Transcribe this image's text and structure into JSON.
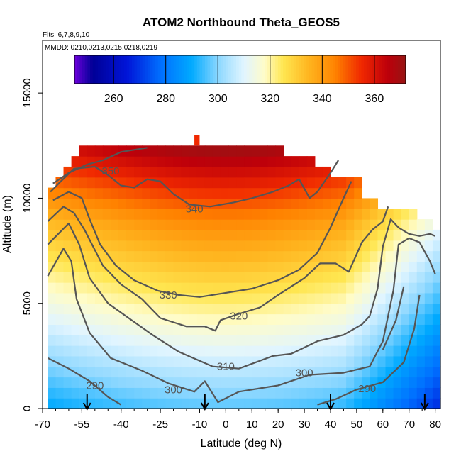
{
  "chart_data": {
    "type": "heatmap",
    "title": "ATOM2 Northbound Theta_GEOS5",
    "flights_note": "Flts: 6,7,8,9,10",
    "dates_note": "MMDD: 0210,0213,0215,0218,0219",
    "xlabel": "Latitude (deg N)",
    "ylabel": "Altitude (m)",
    "xlim": [
      -70,
      82
    ],
    "ylim": [
      0,
      17500
    ],
    "x_ticks": [
      "-70",
      "-55",
      "-40",
      "-25",
      "-10",
      "0",
      "10",
      "20",
      "30",
      "40",
      "50",
      "60",
      "70",
      "80"
    ],
    "x_tick_values": [
      -70,
      -55,
      -40,
      -25,
      -10,
      0,
      10,
      20,
      30,
      40,
      50,
      60,
      70,
      80
    ],
    "y_ticks": [
      "0",
      "5000",
      "10000",
      "15000"
    ],
    "y_tick_values": [
      0,
      5000,
      10000,
      15000
    ],
    "colorbar": {
      "range": [
        245,
        372
      ],
      "ticks": [
        "260",
        "280",
        "300",
        "320",
        "340",
        "360"
      ],
      "tick_values": [
        260,
        280,
        300,
        320,
        340,
        360
      ]
    },
    "contours": [
      {
        "level": 290,
        "label": "290",
        "points": [
          [
            -68,
            2400
          ],
          [
            -60,
            1900
          ],
          [
            -52,
            1300
          ],
          [
            -45,
            550
          ],
          [
            -40,
            180
          ]
        ],
        "label_at": [
          -50,
          1100
        ]
      },
      {
        "level": 290,
        "label": "290",
        "points": [
          [
            35,
            180
          ],
          [
            42,
            450
          ],
          [
            50,
            900
          ],
          [
            60,
            1250
          ],
          [
            68,
            2200
          ],
          [
            72,
            3800
          ],
          [
            74,
            5400
          ]
        ],
        "label_at": [
          54,
          950
        ]
      },
      {
        "level": 300,
        "label": "300",
        "points": [
          [
            -68,
            6300
          ],
          [
            -62,
            7600
          ],
          [
            -59,
            7000
          ],
          [
            -57,
            5200
          ],
          [
            -52,
            3600
          ],
          [
            -44,
            2400
          ],
          [
            -32,
            1800
          ],
          [
            -22,
            1200
          ],
          [
            -12,
            800
          ],
          [
            -8,
            1300
          ],
          [
            -3,
            300
          ],
          [
            5,
            800
          ],
          [
            20,
            1100
          ],
          [
            32,
            1600
          ],
          [
            45,
            1700
          ],
          [
            55,
            2000
          ],
          [
            60,
            3200
          ],
          [
            64,
            5600
          ],
          [
            66,
            7800
          ],
          [
            70,
            8100
          ],
          [
            74,
            7900
          ],
          [
            78,
            7000
          ],
          [
            80,
            6400
          ]
        ],
        "label_at": [
          -20,
          900
        ]
      },
      {
        "level": 300,
        "label": "300",
        "points": [
          [
            60,
            2800
          ],
          [
            65,
            4200
          ],
          [
            68,
            5800
          ]
        ],
        "label_at": [
          30,
          1700
        ]
      },
      {
        "level": 310,
        "label": "310",
        "points": [
          [
            -68,
            7800
          ],
          [
            -60,
            8800
          ],
          [
            -56,
            7800
          ],
          [
            -52,
            6200
          ],
          [
            -45,
            5000
          ],
          [
            -36,
            4200
          ],
          [
            -28,
            3500
          ],
          [
            -18,
            2700
          ],
          [
            -5,
            2000
          ],
          [
            5,
            1900
          ],
          [
            18,
            2500
          ],
          [
            25,
            2600
          ],
          [
            35,
            3200
          ],
          [
            45,
            3500
          ],
          [
            52,
            4000
          ],
          [
            55,
            4400
          ],
          [
            58,
            5700
          ],
          [
            60,
            7700
          ],
          [
            63,
            9000
          ],
          [
            66,
            8600
          ],
          [
            70,
            8300
          ],
          [
            74,
            8200
          ],
          [
            78,
            8300
          ],
          [
            80,
            8200
          ]
        ],
        "label_at": [
          0,
          2000
        ]
      },
      {
        "level": 320,
        "label": "320",
        "points": [
          [
            -68,
            8900
          ],
          [
            -62,
            9600
          ],
          [
            -58,
            9300
          ],
          [
            -54,
            8500
          ],
          [
            -47,
            6800
          ],
          [
            -40,
            5900
          ],
          [
            -32,
            5200
          ],
          [
            -25,
            4300
          ],
          [
            -15,
            3900
          ],
          [
            -8,
            3900
          ],
          [
            -4,
            3700
          ],
          [
            -2,
            4200
          ],
          [
            5,
            4500
          ],
          [
            13,
            4800
          ],
          [
            20,
            5400
          ],
          [
            30,
            6200
          ],
          [
            36,
            6900
          ],
          [
            42,
            6900
          ],
          [
            47,
            6500
          ],
          [
            52,
            7900
          ],
          [
            56,
            8500
          ],
          [
            60,
            8900
          ],
          [
            62,
            9600
          ]
        ],
        "label_at": [
          5,
          4400
        ]
      },
      {
        "level": 330,
        "label": "330",
        "points": [
          [
            -66,
            9900
          ],
          [
            -60,
            10300
          ],
          [
            -55,
            10000
          ],
          [
            -52,
            9000
          ],
          [
            -48,
            7800
          ],
          [
            -42,
            6800
          ],
          [
            -35,
            6100
          ],
          [
            -26,
            5600
          ],
          [
            -18,
            5400
          ],
          [
            -10,
            5300
          ],
          [
            0,
            5500
          ],
          [
            10,
            5700
          ],
          [
            20,
            6100
          ],
          [
            28,
            6600
          ],
          [
            35,
            7400
          ],
          [
            40,
            8600
          ],
          [
            45,
            10000
          ],
          [
            48,
            10800
          ]
        ],
        "label_at": [
          -22,
          5400
        ]
      },
      {
        "level": 340,
        "label": "340",
        "points": [
          [
            -67,
            10300
          ],
          [
            -63,
            10800
          ],
          [
            -58,
            11400
          ],
          [
            -50,
            11500
          ],
          [
            -45,
            11100
          ],
          [
            -40,
            10600
          ],
          [
            -35,
            10500
          ],
          [
            -30,
            10900
          ],
          [
            -25,
            10800
          ],
          [
            -20,
            10200
          ],
          [
            -14,
            9700
          ],
          [
            -6,
            9600
          ],
          [
            3,
            9800
          ],
          [
            10,
            10000
          ],
          [
            18,
            10300
          ],
          [
            24,
            10600
          ],
          [
            28,
            10900
          ],
          [
            32,
            10000
          ],
          [
            35,
            10300
          ],
          [
            40,
            11200
          ],
          [
            43,
            11800
          ]
        ],
        "label_at": [
          -12,
          9500
        ]
      },
      {
        "level": 350,
        "label": "350",
        "points": [
          [
            -66,
            10700
          ],
          [
            -60,
            11200
          ],
          [
            -53,
            11600
          ],
          [
            -47,
            11800
          ],
          [
            -40,
            12200
          ],
          [
            -30,
            12400
          ]
        ],
        "label_at": [
          -44,
          11300
        ]
      }
    ],
    "arrows_latitude": [
      -53,
      -8,
      40,
      76
    ]
  }
}
